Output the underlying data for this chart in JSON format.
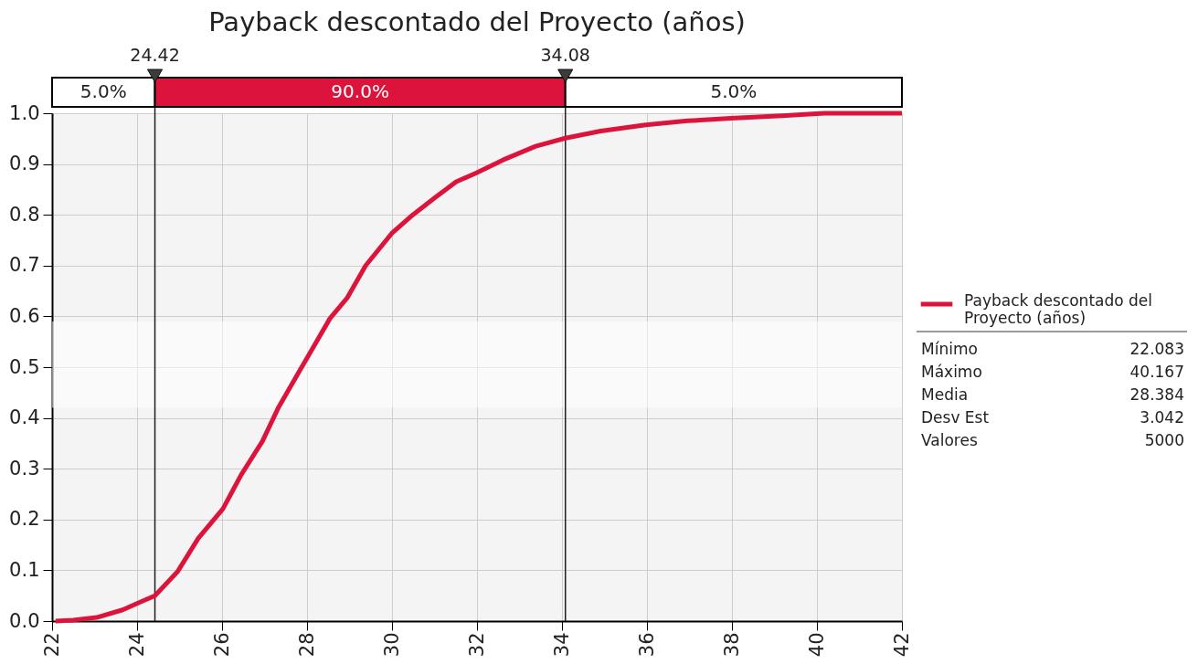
{
  "chart_data": {
    "type": "line",
    "title": "Payback descontado del Proyecto (años)",
    "x": [
      22.083,
      22.5,
      23.05,
      23.66,
      24.06,
      24.42,
      24.95,
      25.44,
      26.02,
      26.45,
      26.95,
      27.33,
      27.84,
      28.0,
      28.54,
      28.95,
      29.38,
      30.0,
      30.49,
      31.0,
      31.51,
      32.0,
      32.61,
      33.38,
      34.08,
      34.91,
      35.97,
      36.95,
      37.97,
      39.17,
      40.167,
      42
    ],
    "series": [
      {
        "name": "Payback descontado del Proyecto (años)",
        "color": "#dc143c",
        "values": [
          0,
          0.002,
          0.007,
          0.022,
          0.037,
          0.05,
          0.097,
          0.163,
          0.221,
          0.288,
          0.354,
          0.421,
          0.495,
          0.518,
          0.596,
          0.637,
          0.7,
          0.764,
          0.8,
          0.833,
          0.865,
          0.883,
          0.908,
          0.935,
          0.951,
          0.965,
          0.977,
          0.985,
          0.99,
          0.995,
          1.0,
          1.0
        ]
      }
    ],
    "xlim": [
      22,
      42
    ],
    "xticks": [
      22,
      24,
      26,
      28,
      30,
      32,
      34,
      36,
      38,
      40,
      42
    ],
    "ylim": [
      0,
      1
    ],
    "yticks": [
      {
        "value": 0,
        "label": "0.0"
      },
      0.1,
      0.2,
      0.3,
      0.4,
      0.5,
      0.6,
      0.7,
      0.8,
      0.9,
      {
        "value": 1,
        "label": "1.0"
      }
    ],
    "grid": true,
    "legend": "right",
    "ref_lines": [
      {
        "axis": "x",
        "value": 24.42,
        "label": "24.42"
      },
      {
        "axis": "x",
        "value": 34.08,
        "label": "34.08"
      }
    ],
    "bands": [
      {
        "axis": "y",
        "from": 0.42,
        "to": 0.59,
        "color": "#ffffff"
      }
    ],
    "annotations": [
      "5.0%",
      "90.0%",
      "5.0%",
      "Mínimo",
      "22.083",
      "Máximo",
      "40.167",
      "Media",
      "28.384",
      "Desv Est",
      "3.042",
      "Valores",
      "5000"
    ]
  }
}
